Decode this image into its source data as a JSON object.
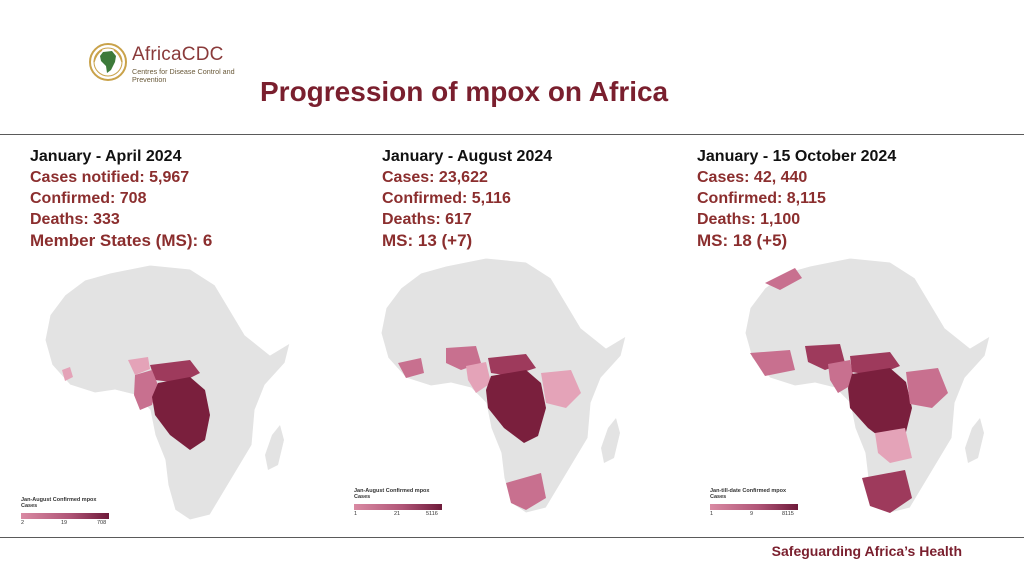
{
  "logo": {
    "name": "AfricaCDC",
    "subtitle": "Centres for Disease Control and Prevention"
  },
  "title": "Progression of mpox on Africa",
  "panels": [
    {
      "period": "January  - April 2024",
      "stats": [
        "Cases notified: 5,967",
        "Confirmed: 708",
        "Deaths: 333"
      ],
      "member_states": "Member States (MS): 6",
      "legend": {
        "title": "Jan-August Confirmed mpox Cases",
        "ticks": [
          "2",
          "19",
          "708"
        ]
      }
    },
    {
      "period": "January - August 2024",
      "stats": [
        "Cases: 23,622",
        "Confirmed: 5,116",
        "Deaths: 617"
      ],
      "member_states": "MS: 13 (+7)",
      "legend": {
        "title": "Jan-August Confirmed mpox Cases",
        "ticks": [
          "1",
          "21",
          "5116"
        ]
      }
    },
    {
      "period": "January - 15 October 2024",
      "stats": [
        "Cases: 42, 440",
        "Confirmed: 8,115",
        "Deaths: 1,100"
      ],
      "member_states": "MS: 18 (+5)",
      "legend": {
        "title": "Jan-till-date Confirmed mpox Cases",
        "ticks": [
          "1",
          "9",
          "8115"
        ]
      }
    }
  ],
  "footer": "Safeguarding Africa’s Health",
  "colors": {
    "title": "#7a1f2e",
    "stat_text": "#8b2e2e",
    "land": "#e3e3e3",
    "low": "#e4a3b8",
    "mid": "#c8708f",
    "high": "#9e3a5c",
    "max": "#7a1f3d"
  }
}
